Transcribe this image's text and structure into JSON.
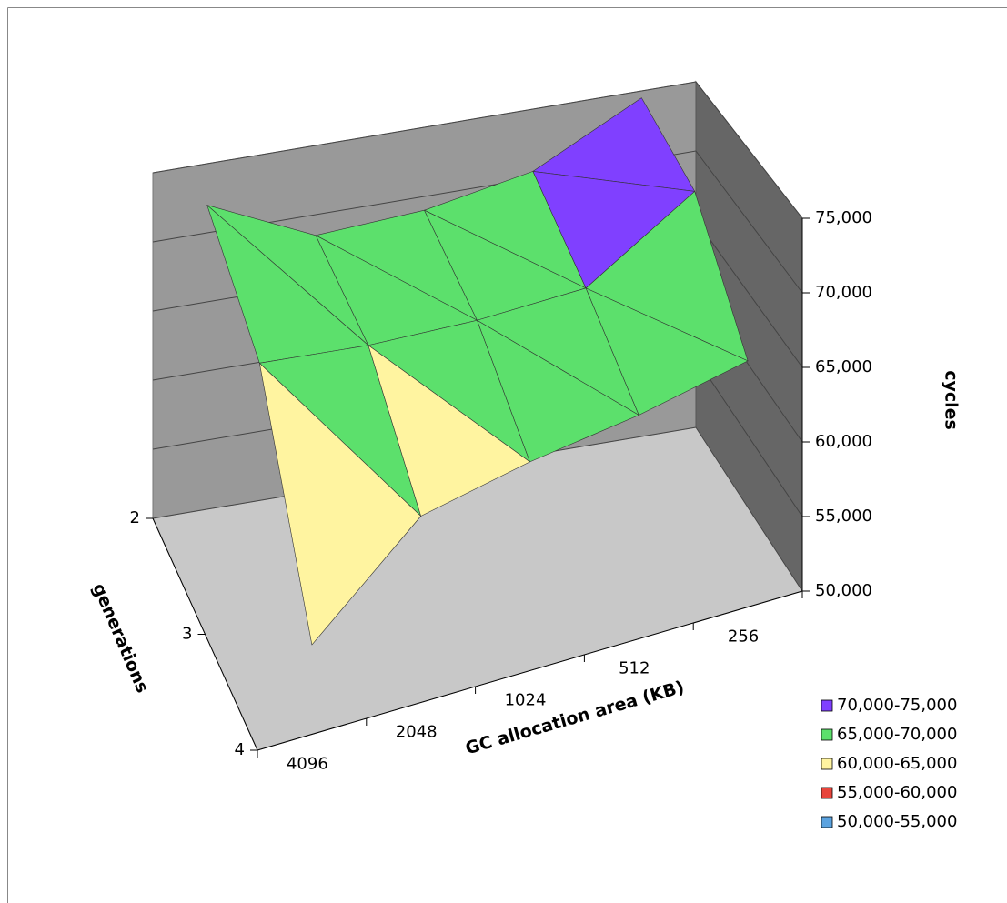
{
  "chart_data": {
    "type": "surface3d",
    "x_label": "GC allocation area (KB)",
    "y_label": "generations",
    "z_label": "cycles",
    "x_categories": [
      "4096",
      "2048",
      "1024",
      "512",
      "256"
    ],
    "y_categories": [
      "2",
      "3",
      "4"
    ],
    "values": [
      [
        72000,
        68500,
        69000,
        70500,
        74500
      ],
      [
        68000,
        67500,
        67500,
        68000,
        73000
      ],
      [
        56000,
        62500,
        64000,
        65000,
        66500
      ]
    ],
    "zlim": [
      50000,
      75000
    ],
    "zticks": [
      {
        "value": 50000,
        "label": "50,000"
      },
      {
        "value": 55000,
        "label": "55,000"
      },
      {
        "value": 60000,
        "label": "60,000"
      },
      {
        "value": 65000,
        "label": "65,000"
      },
      {
        "value": 70000,
        "label": "70,000"
      },
      {
        "value": 75000,
        "label": "75,000"
      }
    ],
    "grid": true,
    "legend_position": "bottom-right",
    "bands": [
      {
        "label": "70,000-75,000",
        "from": 70000,
        "to": 75000,
        "color": "#8040ff"
      },
      {
        "label": "65,000-70,000",
        "from": 65000,
        "to": 70000,
        "color": "#5ce06c"
      },
      {
        "label": "60,000-65,000",
        "from": 60000,
        "to": 65000,
        "color": "#fff4a0"
      },
      {
        "label": "55,000-60,000",
        "from": 55000,
        "to": 60000,
        "color": "#e8453c"
      },
      {
        "label": "50,000-55,000",
        "from": 50000,
        "to": 55000,
        "color": "#5ba3e0"
      }
    ]
  }
}
